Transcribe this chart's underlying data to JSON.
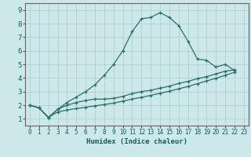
{
  "title": "",
  "xlabel": "Humidex (Indice chaleur)",
  "ylabel": "",
  "bg_color": "#cce8ea",
  "grid_color": "#b0d0d4",
  "line_color": "#2a6e6a",
  "xlim": [
    -0.5,
    23.5
  ],
  "ylim": [
    0.5,
    9.5
  ],
  "xticks": [
    0,
    1,
    2,
    3,
    4,
    5,
    6,
    7,
    8,
    9,
    10,
    11,
    12,
    13,
    14,
    15,
    16,
    17,
    18,
    19,
    20,
    21,
    22,
    23
  ],
  "yticks": [
    1,
    2,
    3,
    4,
    5,
    6,
    7,
    8,
    9
  ],
  "line1_x": [
    0,
    1,
    2,
    3,
    4,
    5,
    6,
    7,
    8,
    9,
    10,
    11,
    12,
    13,
    14,
    15,
    16,
    17,
    18,
    19,
    20,
    21,
    22
  ],
  "line1_y": [
    2.0,
    1.8,
    1.1,
    1.7,
    2.2,
    2.6,
    3.0,
    3.5,
    4.2,
    5.0,
    6.0,
    7.4,
    8.35,
    8.45,
    8.8,
    8.45,
    7.85,
    6.7,
    5.4,
    5.3,
    4.8,
    5.0,
    4.55
  ],
  "line2_x": [
    0,
    1,
    2,
    3,
    4,
    5,
    6,
    7,
    8,
    9,
    10,
    11,
    12,
    13,
    14,
    15,
    16,
    17,
    18,
    19,
    20,
    21,
    22
  ],
  "line2_y": [
    2.0,
    1.8,
    1.1,
    1.7,
    2.0,
    2.2,
    2.35,
    2.45,
    2.45,
    2.5,
    2.65,
    2.85,
    3.0,
    3.1,
    3.25,
    3.4,
    3.6,
    3.75,
    3.95,
    4.1,
    4.3,
    4.5,
    4.6
  ],
  "line3_x": [
    0,
    1,
    2,
    3,
    4,
    5,
    6,
    7,
    8,
    9,
    10,
    11,
    12,
    13,
    14,
    15,
    16,
    17,
    18,
    19,
    20,
    21,
    22
  ],
  "line3_y": [
    2.0,
    1.8,
    1.1,
    1.5,
    1.65,
    1.75,
    1.85,
    1.95,
    2.05,
    2.15,
    2.3,
    2.45,
    2.58,
    2.72,
    2.88,
    3.03,
    3.2,
    3.38,
    3.58,
    3.78,
    3.98,
    4.2,
    4.42
  ]
}
